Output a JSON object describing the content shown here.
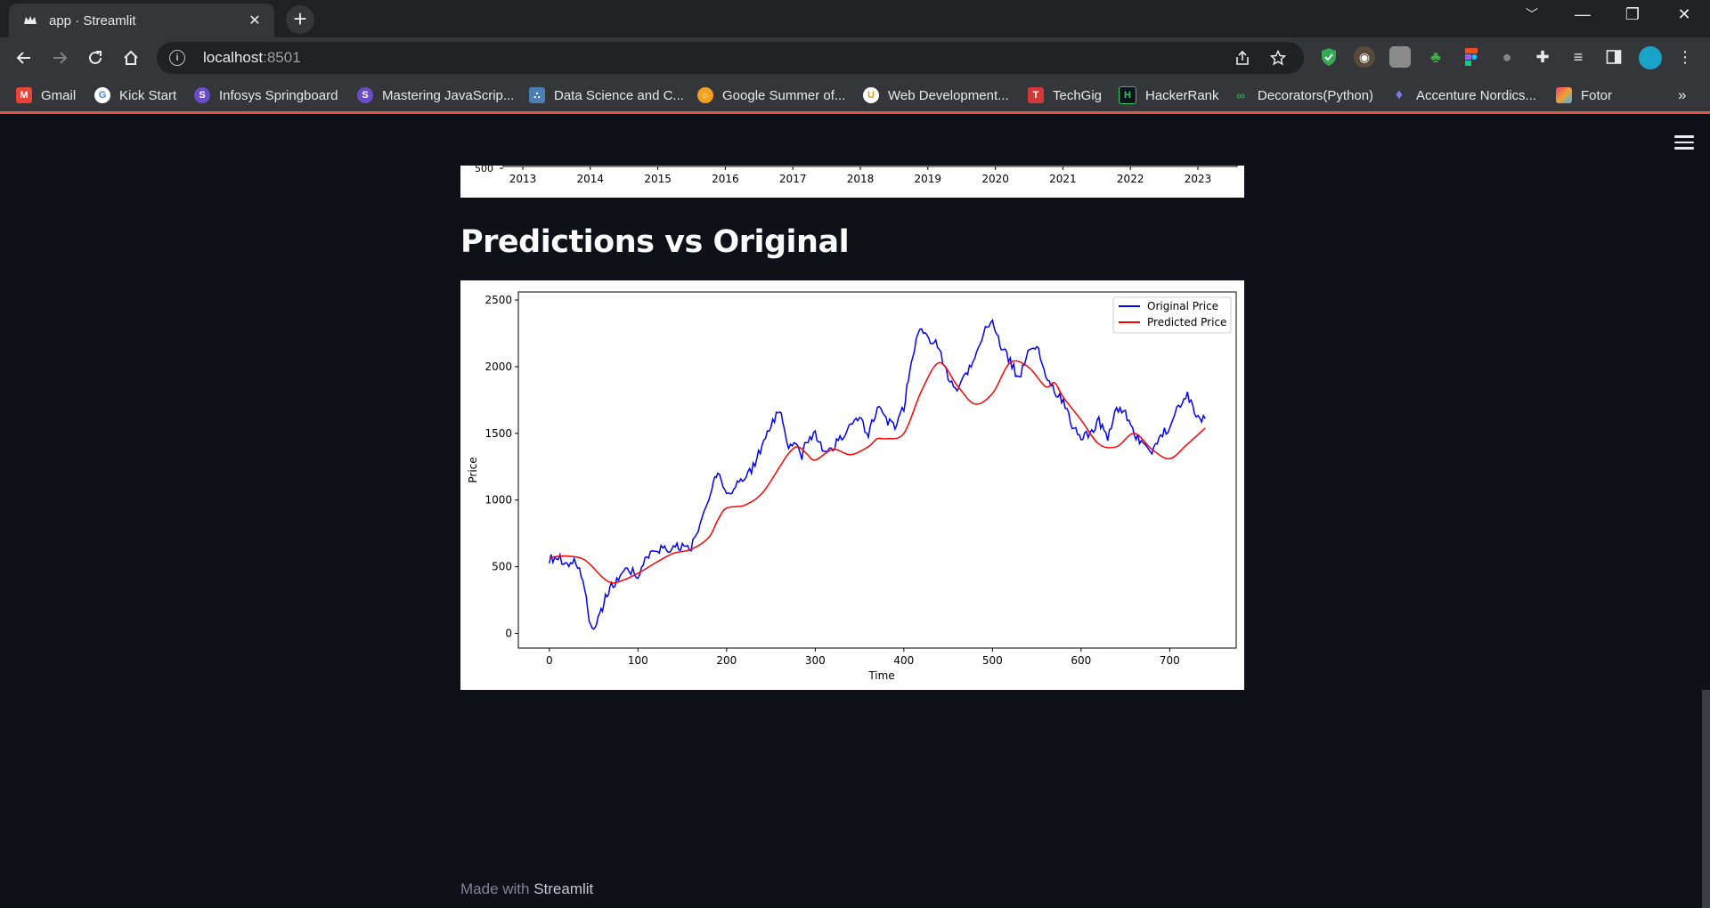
{
  "browser": {
    "tab_title": "app · Streamlit",
    "tab_close": "✕",
    "new_tab": "+",
    "url_host": "localhost",
    "url_port": ":8501",
    "window_controls": [
      "﹀",
      "—",
      "❐",
      "✕"
    ],
    "bookmarks": [
      {
        "label": "Gmail",
        "icon": "gmail-icon",
        "color": "#ea4335"
      },
      {
        "label": "Kick Start",
        "icon": "google-icon",
        "color": "#4285f4"
      },
      {
        "label": "Infosys Springboard",
        "icon": "springboard-icon",
        "color": "#6a4cc8"
      },
      {
        "label": "Mastering JavaScrip...",
        "icon": "springboard-icon",
        "color": "#6a4cc8"
      },
      {
        "label": "Data Science and C...",
        "icon": "data-science-icon",
        "color": "#4a7fb5"
      },
      {
        "label": "Google Summer of...",
        "icon": "gsoc-icon",
        "color": "#f4a020"
      },
      {
        "label": "Web Development...",
        "icon": "web-dev-icon",
        "color": "#e8c43a"
      },
      {
        "label": "TechGig",
        "icon": "techgig-icon",
        "color": "#d23a3a"
      },
      {
        "label": "HackerRank",
        "icon": "hackerrank-icon",
        "color": "#0e141e"
      },
      {
        "label": "Decorators(Python)",
        "icon": "decorators-icon",
        "color": "#2e9e4f"
      },
      {
        "label": "Accenture Nordics...",
        "icon": "accenture-icon",
        "color": "#7b7bf0"
      },
      {
        "label": "Fotor",
        "icon": "fotor-icon",
        "color": "#f0a030"
      }
    ],
    "bookmarks_overflow": "»"
  },
  "page": {
    "heading": "Predictions vs Original",
    "footer_prefix": "Made with ",
    "footer_brand": "Streamlit"
  },
  "chart_data": [
    {
      "type": "line",
      "note_partial": "top chart cut off; only bottom axis visible",
      "y_ticks_visible": [
        "500"
      ],
      "x": [
        "2013",
        "2014",
        "2015",
        "2016",
        "2017",
        "2018",
        "2019",
        "2020",
        "2021",
        "2022",
        "2023"
      ]
    },
    {
      "type": "line",
      "xlabel": "Time",
      "ylabel": "Price",
      "xlim": [
        -35,
        775
      ],
      "ylim": [
        -110,
        2560
      ],
      "x_ticks": [
        0,
        100,
        200,
        300,
        400,
        500,
        600,
        700
      ],
      "y_ticks": [
        0,
        500,
        1000,
        1500,
        2000,
        2500
      ],
      "legend_position": "top-right",
      "series": [
        {
          "name": "Original Price",
          "color": "#0000ff",
          "x": [
            0,
            10,
            20,
            30,
            40,
            45,
            50,
            55,
            60,
            65,
            70,
            80,
            90,
            100,
            110,
            120,
            130,
            140,
            150,
            160,
            170,
            180,
            185,
            190,
            200,
            210,
            220,
            230,
            240,
            250,
            260,
            265,
            270,
            280,
            285,
            290,
            300,
            310,
            320,
            330,
            340,
            350,
            360,
            370,
            380,
            390,
            400,
            405,
            410,
            420,
            430,
            440,
            450,
            460,
            470,
            480,
            490,
            500,
            505,
            510,
            520,
            530,
            540,
            550,
            560,
            570,
            580,
            590,
            600,
            610,
            620,
            630,
            640,
            650,
            660,
            670,
            680,
            690,
            700,
            710,
            720,
            730,
            740
          ],
          "values": [
            560,
            570,
            520,
            540,
            350,
            80,
            20,
            100,
            200,
            290,
            350,
            430,
            480,
            420,
            580,
            620,
            630,
            640,
            650,
            640,
            800,
            1000,
            1150,
            1200,
            1050,
            1100,
            1150,
            1250,
            1400,
            1550,
            1680,
            1550,
            1400,
            1430,
            1330,
            1450,
            1500,
            1350,
            1400,
            1480,
            1550,
            1600,
            1500,
            1700,
            1600,
            1550,
            1700,
            1900,
            2100,
            2300,
            2200,
            2150,
            1900,
            1850,
            1950,
            2050,
            2250,
            2350,
            2250,
            2150,
            2050,
            1900,
            2100,
            2150,
            1950,
            1800,
            1750,
            1550,
            1450,
            1500,
            1600,
            1450,
            1700,
            1650,
            1500,
            1400,
            1350,
            1480,
            1550,
            1700,
            1800,
            1600,
            1610
          ]
        },
        {
          "name": "Predicted Price",
          "color": "#ff0000",
          "x": [
            0,
            20,
            40,
            60,
            70,
            80,
            100,
            120,
            140,
            160,
            180,
            190,
            200,
            220,
            240,
            260,
            270,
            280,
            290,
            300,
            320,
            340,
            360,
            370,
            380,
            400,
            420,
            440,
            460,
            480,
            500,
            520,
            540,
            560,
            570,
            580,
            600,
            620,
            640,
            660,
            680,
            700,
            720,
            740
          ],
          "values": [
            570,
            580,
            550,
            420,
            380,
            390,
            450,
            530,
            600,
            630,
            720,
            850,
            940,
            960,
            1050,
            1250,
            1350,
            1400,
            1350,
            1300,
            1380,
            1340,
            1400,
            1460,
            1460,
            1500,
            1820,
            2030,
            1860,
            1720,
            1800,
            2030,
            2000,
            1850,
            1880,
            1770,
            1600,
            1420,
            1400,
            1500,
            1380,
            1310,
            1420,
            1540
          ]
        }
      ]
    }
  ]
}
